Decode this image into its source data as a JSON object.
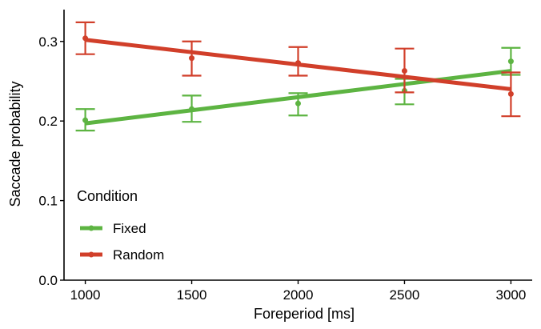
{
  "chart_data": {
    "type": "line",
    "xlabel": "Foreperiod [ms]",
    "ylabel": "Saccade probability",
    "xlim": [
      900,
      3100
    ],
    "ylim": [
      0.0,
      0.34
    ],
    "x_ticks": [
      1000,
      1500,
      2000,
      2500,
      3000
    ],
    "y_ticks": [
      0.0,
      0.1,
      0.2,
      0.3
    ],
    "x_tick_labels": [
      "1000",
      "1500",
      "2000",
      "2500",
      "3000"
    ],
    "y_tick_labels": [
      "0.0",
      "0.1",
      "0.2",
      "0.3"
    ],
    "grid": false,
    "legend": {
      "title": "Condition",
      "position": "bottom-left",
      "entries": [
        "Fixed",
        "Random"
      ]
    },
    "series": [
      {
        "name": "Fixed",
        "color": "#5db442",
        "x": [
          1000,
          1500,
          2000,
          2500,
          3000
        ],
        "points": [
          0.201,
          0.215,
          0.222,
          0.238,
          0.275
        ],
        "ci_low": [
          0.188,
          0.199,
          0.207,
          0.221,
          0.258
        ],
        "ci_high": [
          0.215,
          0.232,
          0.235,
          0.253,
          0.292
        ],
        "fit": [
          0.197,
          0.2135,
          0.23,
          0.2465,
          0.263
        ]
      },
      {
        "name": "Random",
        "color": "#d13f2a",
        "x": [
          1000,
          1500,
          2000,
          2500,
          3000
        ],
        "points": [
          0.304,
          0.279,
          0.273,
          0.263,
          0.234
        ],
        "ci_low": [
          0.284,
          0.257,
          0.257,
          0.236,
          0.206
        ],
        "ci_high": [
          0.324,
          0.3,
          0.293,
          0.291,
          0.261
        ],
        "fit": [
          0.302,
          0.2865,
          0.271,
          0.2555,
          0.24
        ]
      }
    ]
  }
}
